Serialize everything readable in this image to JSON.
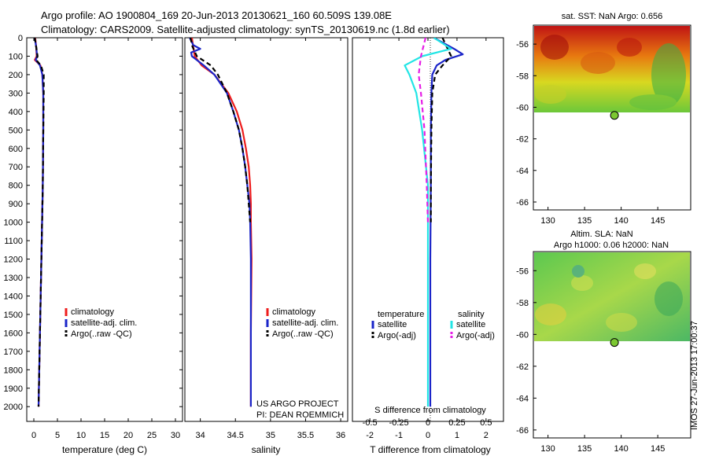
{
  "title": {
    "line1": "Argo profile: AO 1900804_169 20-Jun-2013 20130621_160 60.509S 139.08E",
    "line2": "Climatology: CARS2009. Satellite-adjusted climatology: synTS_20130619.nc (1.8d earlier)"
  },
  "colors": {
    "climatology": "#ee1c1c",
    "satellite": "#1a24c8",
    "argo": "#000000",
    "satellite_s": "#22e5e5",
    "argo_s": "#e61ee6"
  },
  "chart_data": [
    {
      "type": "line",
      "xlabel": "temperature (deg C)",
      "ylabel": "",
      "xlim": [
        -1.5,
        31.5
      ],
      "ylim": [
        2080,
        0
      ],
      "x_ticks": [
        "0",
        "5",
        "10",
        "15",
        "20",
        "25",
        "30"
      ],
      "y_ticks": [
        "0",
        "100",
        "200",
        "300",
        "400",
        "500",
        "600",
        "700",
        "800",
        "900",
        "1000",
        "1100",
        "1200",
        "1300",
        "1400",
        "1500",
        "1600",
        "1700",
        "1800",
        "1900",
        "2000"
      ],
      "legend": [
        "climatology",
        "satellite-adj. clim.",
        "Argo(..raw -QC)"
      ],
      "legend_position": "lower-center",
      "series": [
        {
          "name": "climatology",
          "color": "climatology",
          "style": "solid",
          "depth": [
            0,
            50,
            100,
            120,
            150,
            200,
            300,
            500,
            800,
            1200,
            1600,
            2000
          ],
          "values": [
            0.3,
            0.5,
            0.6,
            0.2,
            1.4,
            1.8,
            2.0,
            2.0,
            1.9,
            1.6,
            1.3,
            1.0
          ]
        },
        {
          "name": "satellite-adj. clim.",
          "color": "satellite",
          "style": "solid",
          "depth": [
            0,
            50,
            100,
            120,
            150,
            200,
            300,
            500,
            800,
            1200,
            1600,
            2000
          ],
          "values": [
            0.2,
            0.5,
            0.7,
            0.4,
            1.3,
            1.8,
            2.0,
            2.0,
            1.9,
            1.6,
            1.3,
            1.0
          ]
        },
        {
          "name": "Argo(..raw -QC)",
          "color": "argo",
          "style": "dashed",
          "depth": [
            0,
            50,
            100,
            120,
            150,
            200,
            300,
            500,
            800,
            1200,
            1600,
            2000
          ],
          "values": [
            0.2,
            0.5,
            0.8,
            0.5,
            1.5,
            2.1,
            2.1,
            2.0,
            1.9,
            1.6,
            1.3,
            1.0
          ]
        }
      ]
    },
    {
      "type": "line",
      "xlabel": "salinity",
      "ylabel": "",
      "xlim": [
        33.78,
        36.1
      ],
      "ylim": [
        2080,
        0
      ],
      "x_ticks": [
        "34",
        "34.5",
        "35",
        "35.5",
        "36"
      ],
      "legend": [
        "climatology",
        "satellite-adj. clim.",
        "Argo(..raw -QC)"
      ],
      "legend_position": "lower-center",
      "annotation": [
        "US ARGO PROJECT",
        "PI: DEAN ROEMMICH"
      ],
      "series": [
        {
          "name": "climatology",
          "color": "climatology",
          "style": "solid",
          "depth": [
            0,
            50,
            100,
            150,
            200,
            300,
            400,
            500,
            600,
            700,
            800,
            900,
            1000,
            1200,
            1600,
            2000
          ],
          "values": [
            33.88,
            33.9,
            33.92,
            34.02,
            34.2,
            34.4,
            34.52,
            34.6,
            34.65,
            34.69,
            34.71,
            34.72,
            34.72,
            34.73,
            34.72,
            34.72
          ]
        },
        {
          "name": "satellite-adj. clim.",
          "color": "satellite",
          "style": "solid",
          "depth": [
            0,
            40,
            60,
            80,
            100,
            150,
            200,
            300,
            400,
            500,
            600,
            700,
            800,
            900,
            1000,
            1200,
            1600,
            2000
          ],
          "values": [
            33.85,
            33.9,
            34.0,
            33.87,
            33.88,
            34.05,
            34.2,
            34.38,
            34.47,
            34.55,
            34.6,
            34.64,
            34.67,
            34.7,
            34.71,
            34.72,
            34.72,
            34.72
          ]
        },
        {
          "name": "Argo(..raw -QC)",
          "color": "argo",
          "style": "dashed",
          "depth": [
            0,
            50,
            100,
            150,
            200,
            300,
            400,
            500,
            600,
            700,
            800,
            900,
            1000
          ],
          "values": [
            33.86,
            33.89,
            33.95,
            34.15,
            34.25,
            34.38,
            34.47,
            34.55,
            34.6,
            34.64,
            34.67,
            34.69,
            34.71
          ]
        }
      ]
    },
    {
      "type": "line",
      "xlabel": "T difference from climatology",
      "ylabel": "",
      "xlim": [
        -2.6,
        2.6
      ],
      "ylim": [
        2080,
        0
      ],
      "x_ticks": [
        "-2",
        "-1",
        "0",
        "1",
        "2"
      ],
      "top_axis_label": "S difference from climatology",
      "top_axis_ticks": [
        "-0.5",
        "-0.25",
        "0",
        "0.25",
        "0.5"
      ],
      "legend_groups": [
        {
          "title": "temperature",
          "items": [
            "satellite",
            "Argo(-adj)"
          ]
        },
        {
          "title": "salinity",
          "items": [
            "satellite",
            "Argo(-adj)"
          ]
        }
      ],
      "legend_position": "lower-center",
      "series": [
        {
          "name": "satellite",
          "group": "temperature",
          "color": "satellite",
          "style": "solid",
          "depth": [
            0,
            60,
            90,
            120,
            150,
            200,
            300,
            500,
            800,
            1200,
            1600,
            2000
          ],
          "values": [
            0.2,
            0.9,
            1.2,
            0.6,
            0.3,
            0.15,
            0.12,
            0.1,
            0.1,
            0.08,
            0.08,
            0.08
          ]
        },
        {
          "name": "Argo(-adj)",
          "group": "temperature",
          "color": "argo",
          "style": "dashed",
          "depth": [
            0,
            100,
            150,
            200,
            300,
            500,
            800,
            1000
          ],
          "values": [
            0.5,
            0.8,
            0.5,
            0.25,
            0.15,
            0.12,
            0.1,
            0.1
          ]
        },
        {
          "name": "satellite",
          "group": "salinity",
          "color": "satellite_s",
          "style": "solid",
          "depth": [
            0,
            60,
            100,
            150,
            200,
            300,
            500,
            800,
            1200,
            1600,
            2000
          ],
          "values": [
            0.05,
            0.2,
            -0.05,
            -0.2,
            -0.16,
            -0.1,
            -0.05,
            0.0,
            0.0,
            0.0,
            0.0
          ]
        },
        {
          "name": "Argo(-adj)",
          "group": "salinity",
          "color": "argo_s",
          "style": "dashed",
          "depth": [
            0,
            100,
            200,
            300,
            500,
            800,
            1000
          ],
          "values": [
            -0.02,
            -0.06,
            -0.08,
            -0.06,
            -0.03,
            -0.01,
            0.0
          ]
        }
      ]
    },
    {
      "type": "heatmap",
      "title": "sat. SST: NaN Argo: 0.656",
      "xlim": [
        128,
        149.5
      ],
      "ylim": [
        -66.5,
        -54.8
      ],
      "x_ticks": [
        "130",
        "135",
        "140",
        "145"
      ],
      "y_ticks": [
        "-56",
        "-58",
        "-60",
        "-62",
        "-64",
        "-66"
      ],
      "data_extent": {
        "lat": [
          -60.2,
          -54.8
        ],
        "lon": [
          128,
          149.5
        ]
      },
      "marker": {
        "lon": 139.08,
        "lat": -60.509
      }
    },
    {
      "type": "heatmap",
      "title_line1": "Altim. SLA: NaN",
      "title_line2": "Argo h1000: 0.06 h2000: NaN",
      "xlim": [
        128,
        149.5
      ],
      "ylim": [
        -66.5,
        -54.8
      ],
      "x_ticks": [
        "130",
        "135",
        "140",
        "145"
      ],
      "y_ticks": [
        "-56",
        "-58",
        "-60",
        "-62",
        "-64",
        "-66"
      ],
      "data_extent": {
        "lat": [
          -60.2,
          -54.8
        ],
        "lon": [
          128,
          149.5
        ]
      },
      "marker": {
        "lon": 139.08,
        "lat": -60.509
      }
    }
  ],
  "footer_stamp": "IMOS 27-Jun-2013 17:00:37"
}
